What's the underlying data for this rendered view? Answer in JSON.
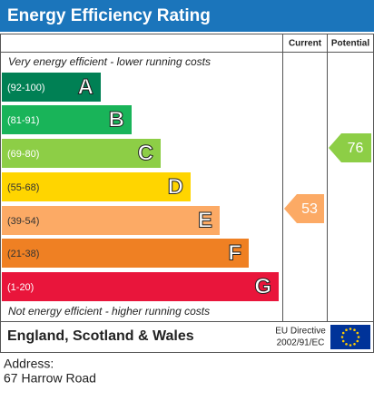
{
  "header": {
    "title": "Energy Efficiency Rating"
  },
  "columns": {
    "current": "Current",
    "potential": "Potential"
  },
  "top_note": "Very energy efficient - lower running costs",
  "bottom_note": "Not energy efficient - higher running costs",
  "bands": [
    {
      "range": "(92-100)",
      "letter": "A",
      "color": "#008054",
      "text_color": "#ffffff"
    },
    {
      "range": "(81-91)",
      "letter": "B",
      "color": "#19b459",
      "text_color": "#ffffff"
    },
    {
      "range": "(69-80)",
      "letter": "C",
      "color": "#8dce46",
      "text_color": "#ffffff"
    },
    {
      "range": "(55-68)",
      "letter": "D",
      "color": "#ffd500",
      "text_color": "#333333"
    },
    {
      "range": "(39-54)",
      "letter": "E",
      "color": "#fcaa65",
      "text_color": "#333333"
    },
    {
      "range": "(21-38)",
      "letter": "F",
      "color": "#ef8023",
      "text_color": "#333333"
    },
    {
      "range": "(1-20)",
      "letter": "G",
      "color": "#e9153b",
      "text_color": "#ffffff"
    }
  ],
  "ratings": {
    "current": {
      "value": 53,
      "color": "#fcaa65"
    },
    "potential": {
      "value": 76,
      "color": "#8dce46"
    }
  },
  "footer": {
    "region": "England, Scotland & Wales",
    "directive_line1": "EU Directive",
    "directive_line2": "2002/91/EC"
  },
  "address": {
    "label": "Address:",
    "line": "67 Harrow Road"
  }
}
